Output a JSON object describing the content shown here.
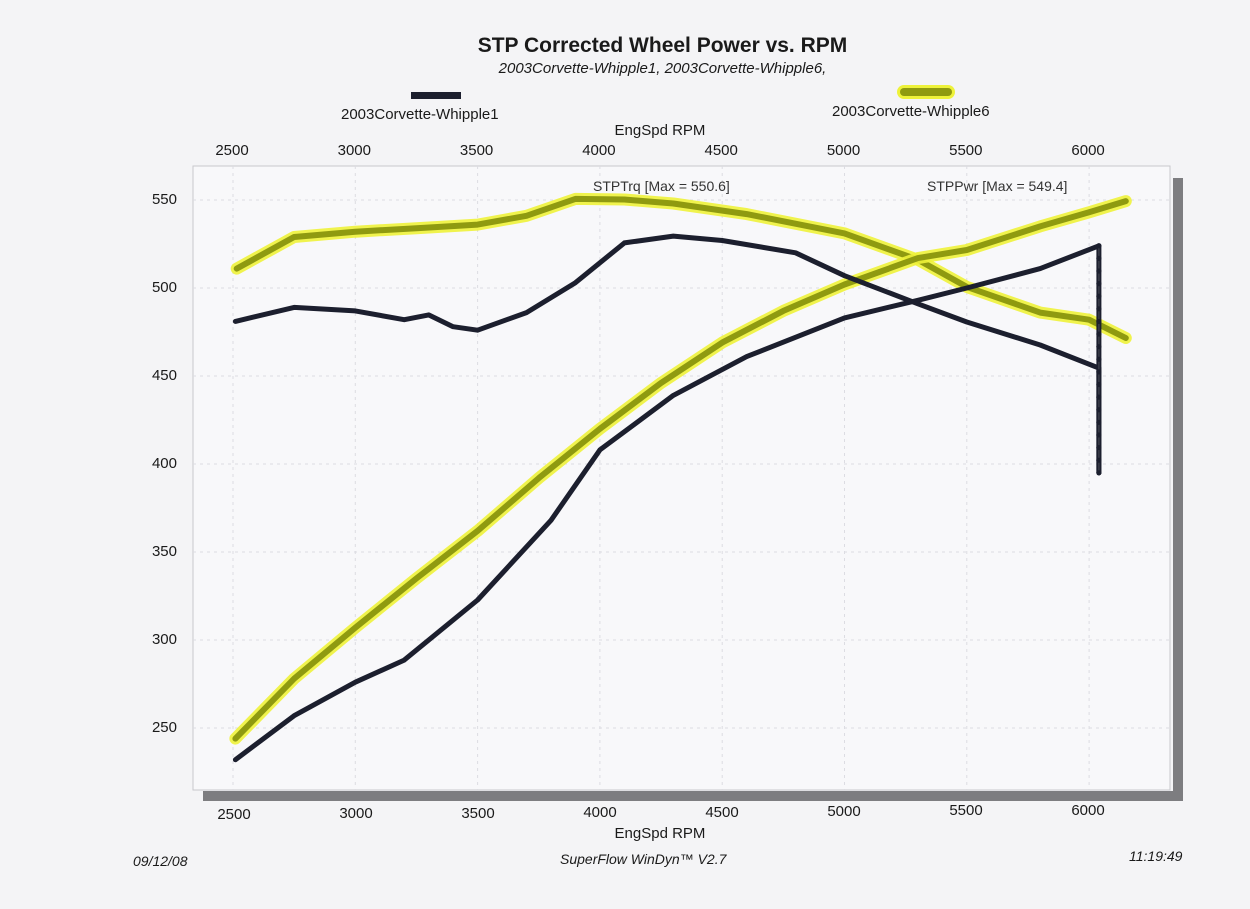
{
  "header": {
    "title": "STP Corrected Wheel Power vs. RPM",
    "subtitle": "2003Corvette-Whipple1, 2003Corvette-Whipple6,"
  },
  "footer": {
    "date": "09/12/08",
    "software": "SuperFlow WinDyn™ V2.7",
    "time": "11:19:49"
  },
  "chart_data": {
    "type": "line",
    "title": "STP Corrected Wheel Power vs. RPM",
    "subtitle": "2003Corvette-Whipple1, 2003Corvette-Whipple6,",
    "xlabel": "EngSpd  RPM",
    "xlabel_top": "EngSpd  RPM",
    "ylabel": "",
    "xlim": [
      2500,
      6250
    ],
    "ylim": [
      230,
      570
    ],
    "xticks": [
      "2500",
      "3000",
      "3500",
      "4000",
      "4500",
      "5000",
      "5500",
      "6000"
    ],
    "yticks": [
      "550",
      "500",
      "450",
      "400",
      "350",
      "300",
      "250"
    ],
    "grid": true,
    "legend": [
      {
        "name": "2003Corvette-Whipple1",
        "color": "#1c1f2e",
        "position": "top-left"
      },
      {
        "name": "2003Corvette-Whipple6",
        "color": "#8f9a10",
        "highlight": "#eef23a",
        "position": "top-right"
      }
    ],
    "annotations": [
      {
        "text": "STPTrq [Max = 550.6]"
      },
      {
        "text": "STPPwr [Max = 549.4]"
      }
    ],
    "series": [
      {
        "name": "2003Corvette-Whipple6 STPTrq",
        "run": "2003Corvette-Whipple6",
        "color": "#8f9a10",
        "x": [
          2515,
          2750,
          3000,
          3250,
          3500,
          3700,
          3900,
          4100,
          4300,
          4600,
          5000,
          5300,
          5500,
          5800,
          6000,
          6150
        ],
        "y": [
          511,
          529,
          532,
          534,
          536,
          541,
          550.6,
          550.3,
          548,
          542,
          531,
          516,
          500.6,
          486,
          482,
          471.6
        ]
      },
      {
        "name": "2003Corvette-Whipple6 STPPwr",
        "run": "2003Corvette-Whipple6",
        "color": "#8f9a10",
        "x": [
          2510,
          2750,
          3000,
          3250,
          3500,
          3750,
          4000,
          4250,
          4500,
          4750,
          5000,
          5300,
          5500,
          5800,
          6000,
          6150
        ],
        "y": [
          244,
          278,
          307,
          335,
          362,
          392,
          420,
          446,
          469,
          487,
          502,
          517,
          521.6,
          535,
          543,
          549.4
        ]
      },
      {
        "name": "2003Corvette-Whipple1 STPTrq",
        "run": "2003Corvette-Whipple1",
        "color": "#1c1f2e",
        "x": [
          2510,
          2750,
          3000,
          3200,
          3300,
          3400,
          3500,
          3700,
          3900,
          4100,
          4300,
          4500,
          4800,
          5000,
          5300,
          5500,
          5800,
          6040,
          6040
        ],
        "y": [
          481,
          489,
          487,
          482,
          484.7,
          478,
          476,
          486,
          503,
          525.6,
          529.5,
          527,
          520,
          507,
          491,
          480.7,
          467.6,
          454.5,
          395
        ]
      },
      {
        "name": "2003Corvette-Whipple1 STPPwr",
        "run": "2003Corvette-Whipple1",
        "color": "#1c1f2e",
        "x": [
          2510,
          2750,
          3000,
          3200,
          3500,
          3800,
          4000,
          4300,
          4600,
          5000,
          5300,
          5500,
          5800,
          6040,
          6040
        ],
        "y": [
          232,
          257,
          276,
          288.6,
          322.7,
          368,
          408,
          439,
          461,
          483,
          493,
          500,
          511,
          524,
          395
        ]
      }
    ]
  }
}
